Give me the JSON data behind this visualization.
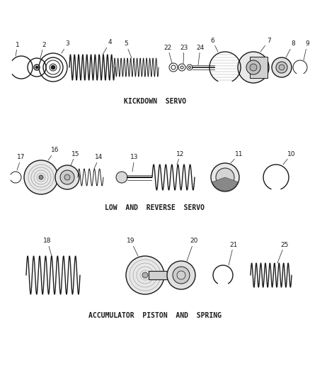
{
  "bg_color": "#ffffff",
  "line_color": "#1a1a1a",
  "section1_label": "KICKDOWN  SERVO",
  "section2_label": "LOW  AND  REVERSE  SERVO",
  "section3_label": "ACCUMULATOR  PISTON  AND  SPRING",
  "font_size_label": 7.0,
  "font_size_num": 6.5
}
